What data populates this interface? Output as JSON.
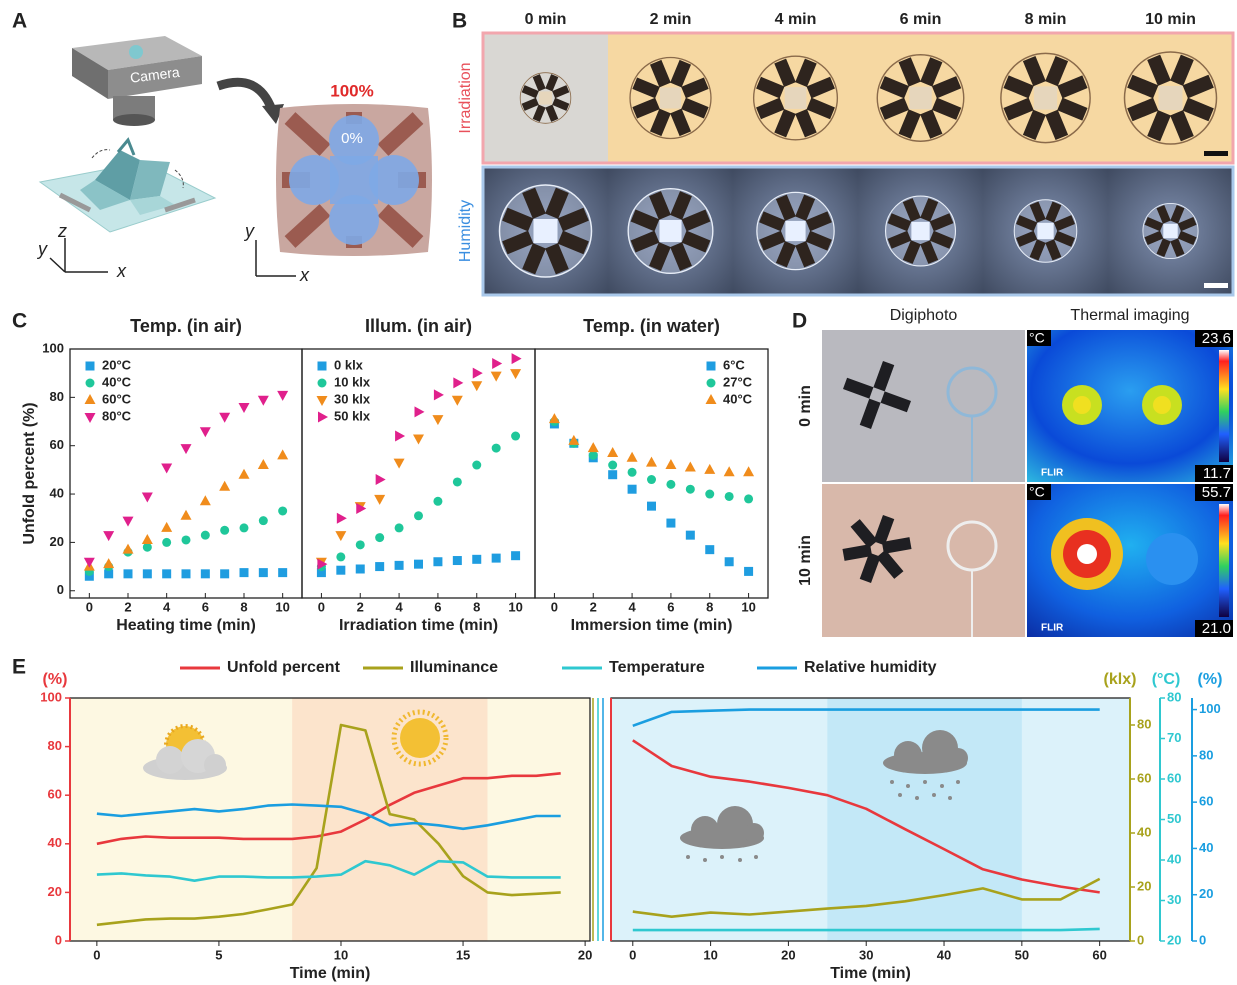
{
  "panels": {
    "A": {
      "label": "A",
      "camera": "Camera",
      "axis_letters_3d": [
        "z",
        "y",
        "x"
      ],
      "axis_letters_2d": [
        "y",
        "x"
      ],
      "full": "100%",
      "zero": "0%"
    },
    "B": {
      "label": "B",
      "times": [
        "0 min",
        "2 min",
        "4 min",
        "6 min",
        "8 min",
        "10 min"
      ],
      "rows": [
        "Irradiation",
        "Humidity"
      ]
    },
    "C": {
      "label": "C"
    },
    "D": {
      "label": "D",
      "columns": [
        "Digiphoto",
        "Thermal imaging"
      ],
      "rows": [
        "0 min",
        "10 min"
      ],
      "thermal": [
        {
          "unit": "°C",
          "max": "23.6",
          "min": "11.7",
          "brand": "FLIR"
        },
        {
          "unit": "°C",
          "max": "55.7",
          "min": "21.0",
          "brand": "FLIR"
        }
      ]
    },
    "E": {
      "label": "E"
    }
  },
  "chart_data": [
    {
      "type": "scatter",
      "title": "Temp. (in air)",
      "xlabel": "Heating time (min)",
      "ylabel": "Unfold percent (%)",
      "x": [
        0,
        1,
        2,
        3,
        4,
        5,
        6,
        7,
        8,
        9,
        10
      ],
      "xlim": [
        -1,
        11
      ],
      "xticks": [
        0,
        2,
        4,
        6,
        8,
        10
      ],
      "ylim": [
        -3,
        100
      ],
      "yticks": [
        0,
        20,
        40,
        60,
        80,
        100
      ],
      "legend": "top-left",
      "series": [
        {
          "name": "20°C",
          "color": "#1f9de0",
          "marker": "square",
          "values": [
            6,
            7,
            7,
            7,
            7,
            7,
            7,
            7,
            7.5,
            7.5,
            7.5
          ]
        },
        {
          "name": "40°C",
          "color": "#1fc79a",
          "marker": "circle",
          "values": [
            8,
            10,
            16,
            18,
            20,
            21,
            23,
            25,
            26,
            29,
            33
          ]
        },
        {
          "name": "60°C",
          "color": "#f08c1c",
          "marker": "triangle-up",
          "values": [
            10,
            11,
            17,
            21,
            26,
            31,
            37,
            43,
            48,
            52,
            56
          ]
        },
        {
          "name": "80°C",
          "color": "#e0208c",
          "marker": "triangle-down",
          "values": [
            12,
            23,
            29,
            39,
            51,
            59,
            66,
            72,
            76,
            79,
            81
          ]
        }
      ]
    },
    {
      "type": "scatter",
      "title": "Illum. (in air)",
      "xlabel": "Irradiation time (min)",
      "x": [
        0,
        1,
        2,
        3,
        4,
        5,
        6,
        7,
        8,
        9,
        10
      ],
      "xlim": [
        -1,
        11
      ],
      "xticks": [
        0,
        2,
        4,
        6,
        8,
        10
      ],
      "ylim": [
        -3,
        100
      ],
      "legend": "top-left",
      "series": [
        {
          "name": "0 klx",
          "color": "#1f9de0",
          "marker": "square",
          "values": [
            7.5,
            8.5,
            9,
            10,
            10.5,
            11,
            12,
            12.5,
            13,
            13.5,
            14.5
          ]
        },
        {
          "name": "10 klx",
          "color": "#1fc79a",
          "marker": "circle",
          "values": [
            10,
            14,
            19,
            22,
            26,
            31,
            37,
            45,
            52,
            59,
            64
          ]
        },
        {
          "name": "30 klx",
          "color": "#f08c1c",
          "marker": "triangle-down",
          "values": [
            12,
            23,
            35,
            38,
            53,
            63,
            71,
            79,
            85,
            89,
            90
          ]
        },
        {
          "name": "50 klx",
          "color": "#e0208c",
          "marker": "triangle-right",
          "values": [
            11,
            30,
            34,
            46,
            64,
            74,
            81,
            86,
            90,
            94,
            96
          ]
        }
      ]
    },
    {
      "type": "scatter",
      "title": "Temp. (in water)",
      "xlabel": "Immersion time (min)",
      "x": [
        0,
        1,
        2,
        3,
        4,
        5,
        6,
        7,
        8,
        9,
        10
      ],
      "xlim": [
        -1,
        11
      ],
      "xticks": [
        0,
        2,
        4,
        6,
        8,
        10
      ],
      "ylim": [
        -3,
        100
      ],
      "legend": "top-right",
      "series": [
        {
          "name": "6°C",
          "color": "#1f9de0",
          "marker": "square",
          "values": [
            69,
            61,
            55,
            48,
            42,
            35,
            28,
            23,
            17,
            12,
            8
          ]
        },
        {
          "name": "27°C",
          "color": "#1fc79a",
          "marker": "circle",
          "values": [
            70,
            61,
            56,
            52,
            49,
            46,
            44,
            42,
            40,
            39,
            38
          ]
        },
        {
          "name": "40°C",
          "color": "#f08c1c",
          "marker": "triangle-up",
          "values": [
            71,
            62,
            59,
            57,
            55,
            53,
            52,
            51,
            50,
            49,
            49
          ]
        }
      ]
    },
    {
      "type": "line",
      "xlabel": "Time (min)",
      "legend": "top",
      "ylabel": "(%)",
      "ylim": [
        0,
        100
      ],
      "yticks": [
        0,
        20,
        40,
        60,
        80,
        100
      ],
      "y2label": "(klx)",
      "y2lim": [
        0,
        90
      ],
      "y2ticks": [
        0,
        20,
        40,
        60,
        80
      ],
      "y3label": "(°C)",
      "y3lim": [
        20,
        80
      ],
      "y3ticks": [
        20,
        30,
        40,
        50,
        60,
        70,
        80
      ],
      "y4label": "(%)",
      "y4lim": [
        0,
        105
      ],
      "y4ticks": [
        0,
        20,
        40,
        60,
        80,
        100
      ],
      "segments": [
        {
          "xlim": [
            -1.1,
            20.2
          ],
          "xticks": [
            0,
            5,
            10,
            15,
            20
          ],
          "x": [
            0,
            1,
            2,
            3,
            4,
            5,
            6,
            7,
            8,
            9,
            10,
            11,
            12,
            13,
            14,
            15,
            16,
            17,
            18,
            19
          ],
          "background": "#fdf8e2",
          "bands": [
            {
              "from": 8,
              "to": 16,
              "color": "#fce4cc"
            }
          ]
        },
        {
          "xlim": [
            -2.8,
            63.9
          ],
          "xticks": [
            0,
            10,
            20,
            30,
            40,
            50,
            60
          ],
          "x": [
            0,
            5,
            10,
            15,
            20,
            25,
            30,
            35,
            40,
            45,
            50,
            55,
            60
          ],
          "background": "#dcf2fa",
          "bands": [
            {
              "from": 25,
              "to": 50,
              "color": "#c3e8f7"
            }
          ]
        }
      ],
      "series": [
        {
          "name": "Unfold percent",
          "color": "#e8383d",
          "axis": "y",
          "segments": [
            {
              "values": [
                40,
                42,
                43,
                42.5,
                42.5,
                42.5,
                42,
                42,
                42,
                43,
                45,
                50,
                56,
                61,
                64,
                67,
                67,
                68,
                68,
                69
              ]
            },
            {
              "values": [
                82.6,
                72,
                67.6,
                65.6,
                63,
                60,
                54.4,
                46,
                37.8,
                29.5,
                25.3,
                22.4,
                20
              ]
            }
          ]
        },
        {
          "name": "Illuminance",
          "color": "#a8a21c",
          "axis": "y2",
          "segments": [
            {
              "values": [
                6,
                7,
                8,
                8.3,
                8.3,
                9,
                10,
                11.7,
                13.5,
                27,
                80,
                78,
                47,
                45,
                36,
                24,
                18,
                17,
                17.5,
                18
              ]
            },
            {
              "values": [
                10.9,
                9,
                10.5,
                9.8,
                10.9,
                12,
                13,
                14.7,
                17,
                19.5,
                15.4,
                15.4,
                23
              ]
            }
          ]
        },
        {
          "name": "Temperature",
          "color": "#2fc8d0",
          "axis": "y3",
          "segments": [
            {
              "values": [
                36.4,
                36.7,
                36.2,
                35.9,
                34.9,
                35.9,
                35.9,
                35.7,
                35.7,
                35.9,
                36.4,
                39.7,
                38.7,
                36.4,
                39.7,
                39.4,
                35.9,
                35.7,
                35.7,
                35.7
              ]
            },
            {
              "values": [
                22.7,
                22.7,
                22.7,
                22.7,
                22.7,
                22.7,
                22.7,
                22.7,
                22.7,
                22.7,
                22.7,
                22.7,
                23
              ]
            }
          ]
        },
        {
          "name": "Relative humidity",
          "color": "#1a9ee0",
          "axis": "y4",
          "segments": [
            {
              "values": [
                55,
                54,
                55,
                56,
                57,
                56,
                57,
                58.5,
                59,
                58.5,
                58,
                55,
                50,
                51,
                50,
                48.5,
                50,
                52,
                54,
                54
              ]
            },
            {
              "values": [
                93,
                99,
                99.5,
                100,
                100,
                100,
                100,
                100,
                100,
                100,
                100,
                100,
                100
              ]
            }
          ]
        }
      ]
    }
  ]
}
